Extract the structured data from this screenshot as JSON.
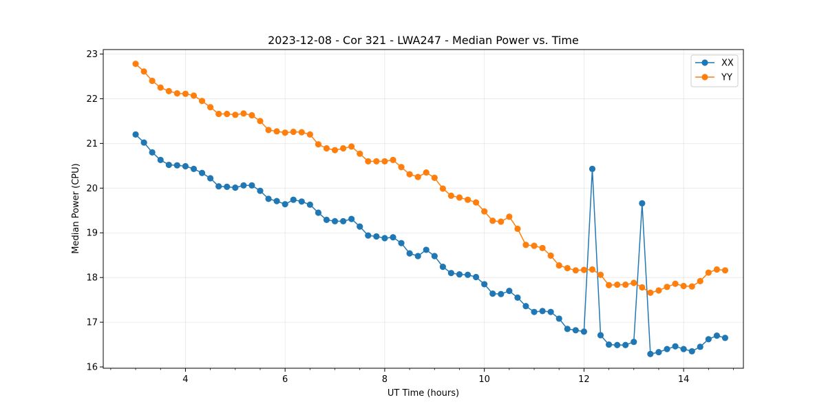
{
  "chart_data": {
    "type": "line",
    "title": "2023-12-08 - Cor 321 - LWA247 - Median Power vs. Time",
    "xlabel": "UT Time (hours)",
    "ylabel": "Median Power (CPU)",
    "xlim": [
      2.35,
      15.2
    ],
    "ylim": [
      15.97,
      23.1
    ],
    "xticks": [
      4,
      6,
      8,
      10,
      12,
      14
    ],
    "yticks": [
      16,
      17,
      18,
      19,
      20,
      21,
      22,
      23
    ],
    "xtick_labels": [
      "4",
      "6",
      "8",
      "10",
      "12",
      "14"
    ],
    "ytick_labels": [
      "16",
      "17",
      "18",
      "19",
      "20",
      "21",
      "22",
      "23"
    ],
    "grid": true,
    "legend_position": "top-right",
    "x": [
      3.0,
      3.167,
      3.333,
      3.5,
      3.667,
      3.833,
      4.0,
      4.167,
      4.333,
      4.5,
      4.667,
      4.833,
      5.0,
      5.167,
      5.333,
      5.5,
      5.667,
      5.833,
      6.0,
      6.167,
      6.333,
      6.5,
      6.667,
      6.833,
      7.0,
      7.167,
      7.333,
      7.5,
      7.667,
      7.833,
      8.0,
      8.167,
      8.333,
      8.5,
      8.667,
      8.833,
      9.0,
      9.167,
      9.333,
      9.5,
      9.667,
      9.833,
      10.0,
      10.167,
      10.333,
      10.5,
      10.667,
      10.833,
      11.0,
      11.167,
      11.333,
      11.5,
      11.667,
      11.833,
      12.0,
      12.167,
      12.333,
      12.5,
      12.667,
      12.833,
      13.0,
      13.167,
      13.333,
      13.5,
      13.667,
      13.833,
      14.0,
      14.167,
      14.333,
      14.5,
      14.667,
      14.833
    ],
    "series": [
      {
        "name": "XX",
        "color": "#1f77b4",
        "values": [
          21.2,
          21.02,
          20.8,
          20.63,
          20.52,
          20.51,
          20.49,
          20.43,
          20.34,
          20.22,
          20.04,
          20.03,
          20.01,
          20.06,
          20.06,
          19.94,
          19.76,
          19.71,
          19.64,
          19.74,
          19.7,
          19.63,
          19.45,
          19.29,
          19.26,
          19.26,
          19.31,
          19.14,
          18.94,
          18.92,
          18.88,
          18.9,
          18.77,
          18.54,
          18.48,
          18.62,
          18.48,
          18.24,
          18.1,
          18.07,
          18.06,
          18.01,
          17.85,
          17.64,
          17.63,
          17.7,
          17.55,
          17.36,
          17.23,
          17.25,
          17.23,
          17.08,
          16.85,
          16.82,
          16.79,
          20.43,
          16.71,
          16.5,
          16.49,
          16.49,
          16.56,
          19.66,
          16.29,
          16.33,
          16.4,
          16.46,
          16.4,
          16.35,
          16.45,
          16.62,
          16.7,
          16.65
        ]
      },
      {
        "name": "YY",
        "color": "#ff7f0e",
        "values": [
          22.78,
          22.61,
          22.4,
          22.25,
          22.17,
          22.12,
          22.11,
          22.07,
          21.95,
          21.81,
          21.66,
          21.66,
          21.64,
          21.67,
          21.63,
          21.5,
          21.3,
          21.27,
          21.24,
          21.26,
          21.25,
          21.2,
          20.98,
          20.89,
          20.85,
          20.89,
          20.93,
          20.77,
          20.6,
          20.6,
          20.6,
          20.63,
          20.47,
          20.31,
          20.25,
          20.35,
          20.23,
          19.99,
          19.83,
          19.79,
          19.74,
          19.68,
          19.48,
          19.27,
          19.25,
          19.36,
          19.09,
          18.73,
          18.71,
          18.66,
          18.49,
          18.27,
          18.21,
          18.16,
          18.17,
          18.18,
          18.06,
          17.83,
          17.84,
          17.84,
          17.88,
          17.78,
          17.66,
          17.71,
          17.79,
          17.86,
          17.81,
          17.8,
          17.92,
          18.11,
          18.18,
          18.16
        ]
      }
    ]
  }
}
